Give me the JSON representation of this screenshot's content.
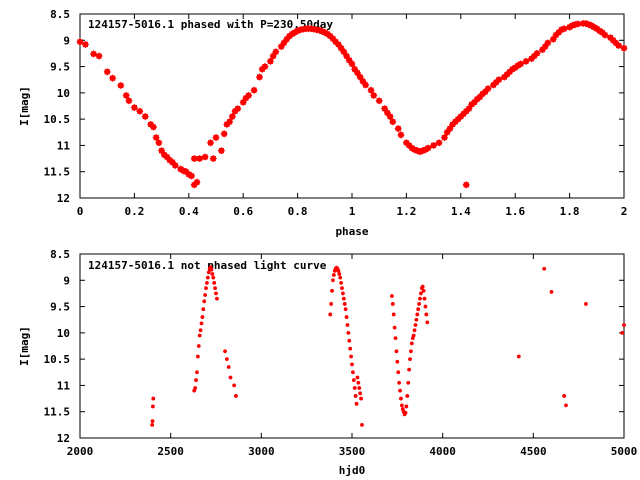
{
  "chart_data": [
    {
      "type": "scatter",
      "title": "124157-5016.1 phased with P=230.50day",
      "xlabel": "phase",
      "ylabel": "I[mag]",
      "xlim": [
        0,
        2
      ],
      "ylim": [
        12,
        8.5
      ],
      "y_inverted": true,
      "grid": false,
      "marker_color": "#ff0000",
      "xticks": [
        "0",
        "0.2",
        "0.4",
        "0.6",
        "0.8",
        "1",
        "1.2",
        "1.4",
        "1.6",
        "1.8",
        "2"
      ],
      "yticks": [
        "8.5",
        "9",
        "9.5",
        "10",
        "10.5",
        "11",
        "11.5",
        "12"
      ],
      "series": [
        {
          "x": [
            0.0,
            0.02,
            0.05,
            0.07,
            0.1,
            0.12,
            0.15,
            0.17,
            0.18,
            0.2,
            0.22,
            0.24,
            0.26,
            0.27,
            0.28,
            0.29,
            0.3,
            0.31,
            0.32,
            0.33,
            0.34,
            0.35,
            0.37,
            0.38,
            0.39,
            0.4,
            0.41,
            0.42,
            0.42,
            0.43,
            0.44,
            0.46,
            0.48,
            0.49,
            0.5,
            0.52,
            0.53,
            0.54,
            0.55,
            0.56,
            0.57,
            0.58,
            0.6,
            0.61,
            0.62,
            0.64,
            0.66,
            0.67,
            0.68,
            0.7,
            0.71,
            0.72,
            0.74,
            0.75,
            0.76,
            0.77,
            0.78,
            0.79,
            0.8,
            0.81,
            0.82,
            0.83,
            0.84,
            0.85,
            0.86,
            0.87,
            0.88,
            0.89,
            0.9,
            0.91,
            0.92,
            0.93,
            0.94,
            0.95,
            0.96,
            0.97,
            0.98,
            0.99,
            1.0,
            1.01,
            1.02,
            1.03,
            1.04,
            1.05,
            1.07,
            1.08,
            1.1,
            1.12,
            1.13,
            1.14,
            1.15,
            1.17,
            1.18,
            1.2,
            1.21,
            1.22,
            1.23,
            1.24,
            1.25,
            1.26,
            1.27,
            1.28,
            1.3,
            1.32,
            1.34,
            1.35,
            1.36,
            1.37,
            1.38,
            1.39,
            1.4,
            1.41,
            1.42,
            1.42,
            1.43,
            1.44,
            1.45,
            1.46,
            1.47,
            1.48,
            1.49,
            1.5,
            1.52,
            1.53,
            1.54,
            1.56,
            1.57,
            1.58,
            1.59,
            1.6,
            1.61,
            1.62,
            1.64,
            1.66,
            1.67,
            1.68,
            1.7,
            1.71,
            1.72,
            1.74,
            1.75,
            1.76,
            1.77,
            1.78,
            1.8,
            1.81,
            1.82,
            1.83,
            1.85,
            1.86,
            1.87,
            1.88,
            1.89,
            1.9,
            1.91,
            1.92,
            1.93,
            1.95,
            1.96,
            1.97,
            1.98,
            2.0
          ],
          "y": [
            9.03,
            9.08,
            9.26,
            9.3,
            9.6,
            9.72,
            9.86,
            10.05,
            10.15,
            10.28,
            10.35,
            10.45,
            10.6,
            10.65,
            10.85,
            10.95,
            11.1,
            11.18,
            11.22,
            11.28,
            11.32,
            11.38,
            11.45,
            11.48,
            11.5,
            11.55,
            11.58,
            11.25,
            11.75,
            11.7,
            11.25,
            11.22,
            10.95,
            11.25,
            10.85,
            11.1,
            10.78,
            10.6,
            10.55,
            10.45,
            10.35,
            10.3,
            10.18,
            10.1,
            10.05,
            9.95,
            9.7,
            9.55,
            9.5,
            9.4,
            9.3,
            9.22,
            9.12,
            9.05,
            8.98,
            8.92,
            8.88,
            8.85,
            8.82,
            8.8,
            8.79,
            8.78,
            8.78,
            8.78,
            8.79,
            8.8,
            8.81,
            8.83,
            8.85,
            8.88,
            8.92,
            8.97,
            9.03,
            9.08,
            9.15,
            9.22,
            9.3,
            9.38,
            9.45,
            9.55,
            9.62,
            9.7,
            9.78,
            9.85,
            9.95,
            10.05,
            10.15,
            10.3,
            10.38,
            10.45,
            10.55,
            10.68,
            10.8,
            10.95,
            11.0,
            11.05,
            11.08,
            11.1,
            11.12,
            11.1,
            11.08,
            11.05,
            11.0,
            10.95,
            10.85,
            10.75,
            10.68,
            10.6,
            10.55,
            10.5,
            10.45,
            10.4,
            10.35,
            11.75,
            10.3,
            10.22,
            10.18,
            10.12,
            10.08,
            10.02,
            9.98,
            9.92,
            9.85,
            9.8,
            9.75,
            9.7,
            9.65,
            9.6,
            9.55,
            9.52,
            9.48,
            9.45,
            9.4,
            9.35,
            9.3,
            9.25,
            9.18,
            9.12,
            9.05,
            8.98,
            8.9,
            8.85,
            8.8,
            8.78,
            8.75,
            8.72,
            8.7,
            8.69,
            8.68,
            8.68,
            8.7,
            8.72,
            8.75,
            8.78,
            8.82,
            8.85,
            8.9,
            8.95,
            9.0,
            9.05,
            9.1,
            9.15
          ]
        }
      ]
    },
    {
      "type": "scatter",
      "title": "124157-5016.1 not phased light curve",
      "xlabel": "hjd0",
      "ylabel": "I[mag]",
      "xlim": [
        2000,
        5000
      ],
      "ylim": [
        12,
        8.5
      ],
      "y_inverted": true,
      "grid": false,
      "marker_color": "#ff0000",
      "xticks": [
        "2000",
        "2500",
        "3000",
        "3500",
        "4000",
        "4500",
        "5000"
      ],
      "yticks": [
        "8.5",
        "9",
        "9.5",
        "10",
        "10.5",
        "11",
        "11.5",
        "12"
      ],
      "series": [
        {
          "x": [
            2398,
            2400,
            2402,
            2404,
            2630,
            2635,
            2640,
            2645,
            2650,
            2655,
            2660,
            2665,
            2670,
            2675,
            2680,
            2685,
            2690,
            2695,
            2700,
            2705,
            2710,
            2715,
            2720,
            2725,
            2730,
            2735,
            2740,
            2745,
            2750,
            2755,
            2800,
            2810,
            2820,
            2830,
            2850,
            2860,
            3380,
            3385,
            3390,
            3395,
            3400,
            3405,
            3410,
            3415,
            3420,
            3425,
            3430,
            3435,
            3440,
            3445,
            3450,
            3455,
            3460,
            3465,
            3470,
            3475,
            3480,
            3485,
            3490,
            3495,
            3500,
            3505,
            3510,
            3515,
            3520,
            3525,
            3530,
            3535,
            3540,
            3545,
            3550,
            3555,
            3720,
            3725,
            3730,
            3735,
            3740,
            3745,
            3750,
            3755,
            3760,
            3765,
            3770,
            3775,
            3780,
            3785,
            3790,
            3795,
            3800,
            3805,
            3810,
            3815,
            3820,
            3825,
            3830,
            3835,
            3840,
            3845,
            3850,
            3855,
            3860,
            3865,
            3870,
            3875,
            3880,
            3885,
            3890,
            3895,
            3900,
            3905,
            3910,
            3915,
            4420,
            4560,
            4600,
            4670,
            4680,
            4790,
            4990,
            5000
          ],
          "y": [
            11.75,
            11.68,
            11.4,
            11.25,
            11.1,
            11.05,
            10.9,
            10.75,
            10.45,
            10.25,
            10.05,
            9.95,
            9.82,
            9.7,
            9.55,
            9.4,
            9.28,
            9.15,
            9.05,
            8.95,
            8.85,
            8.78,
            8.75,
            8.8,
            8.88,
            8.95,
            9.05,
            9.15,
            9.25,
            9.35,
            10.35,
            10.5,
            10.65,
            10.85,
            11.0,
            11.2,
            9.65,
            9.45,
            9.2,
            9.0,
            8.9,
            8.82,
            8.78,
            8.76,
            8.78,
            8.82,
            8.88,
            8.95,
            9.05,
            9.15,
            9.25,
            9.35,
            9.45,
            9.55,
            9.7,
            9.85,
            10.0,
            10.15,
            10.3,
            10.45,
            10.6,
            10.75,
            10.9,
            11.05,
            11.2,
            11.35,
            10.85,
            10.95,
            11.05,
            11.15,
            11.25,
            11.75,
            9.3,
            9.45,
            9.65,
            9.9,
            10.1,
            10.35,
            10.55,
            10.75,
            10.95,
            11.1,
            11.25,
            11.38,
            11.45,
            11.5,
            11.55,
            11.52,
            11.4,
            11.2,
            10.95,
            10.7,
            10.5,
            10.35,
            10.2,
            10.1,
            10.05,
            9.95,
            9.85,
            9.75,
            9.65,
            9.55,
            9.45,
            9.35,
            9.25,
            9.15,
            9.12,
            9.2,
            9.35,
            9.5,
            9.65,
            9.8,
            10.45,
            8.78,
            9.22,
            11.2,
            11.38,
            9.45,
            10.0,
            9.85
          ]
        }
      ]
    }
  ]
}
